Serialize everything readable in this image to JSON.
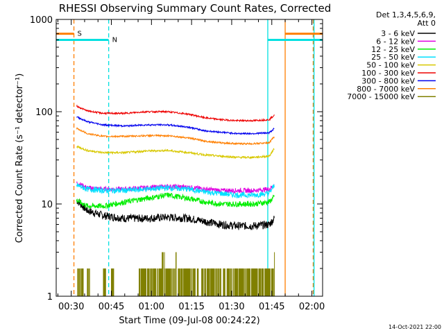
{
  "chart_data": {
    "type": "line",
    "title": "RHESSI Observing Summary Count Rates, Corrected",
    "xlabel": "Start Time (09-Jul-08 00:24:22)",
    "ylabel": "Corrected Count Rate (s⁻¹ detector⁻¹)",
    "y_scale": "log",
    "ylim": [
      1,
      1000
    ],
    "xlim_minutes": [
      24.37,
      124.0
    ],
    "x_ticks": [
      {
        "minute": 30,
        "label": "00:30"
      },
      {
        "minute": 45,
        "label": "00:45"
      },
      {
        "minute": 60,
        "label": "01:00"
      },
      {
        "minute": 75,
        "label": "01:15"
      },
      {
        "minute": 90,
        "label": "01:30"
      },
      {
        "minute": 105,
        "label": "01:45"
      },
      {
        "minute": 120,
        "label": "02:00"
      }
    ],
    "y_ticks": [
      {
        "value": 1,
        "label": "1"
      },
      {
        "value": 10,
        "label": "10"
      },
      {
        "value": 100,
        "label": "100"
      },
      {
        "value": 1000,
        "label": "1000"
      }
    ],
    "legend_header": [
      "Det 1,3,4,5,6,9,",
      "Att 0"
    ],
    "legend_position": "right",
    "series": [
      {
        "name": "3 - 6 keV",
        "color": "#000000",
        "x": [
          32,
          36,
          42,
          50,
          58,
          66,
          74,
          80,
          86,
          92,
          98,
          104,
          106
        ],
        "y": [
          11,
          8.5,
          7.5,
          7.0,
          7.0,
          7.2,
          7.0,
          6.5,
          6.0,
          5.8,
          5.8,
          6.0,
          7.0
        ]
      },
      {
        "name": "6 - 12 keV",
        "color": "#e000e0",
        "x": [
          32,
          36,
          42,
          50,
          58,
          66,
          74,
          80,
          86,
          92,
          98,
          104,
          106
        ],
        "y": [
          17,
          15,
          14.5,
          14.5,
          15,
          15.5,
          15.2,
          14.5,
          14,
          14,
          14,
          14.5,
          16
        ]
      },
      {
        "name": "12 - 25 keV",
        "color": "#00ee00",
        "x": [
          32,
          36,
          42,
          50,
          58,
          66,
          74,
          80,
          86,
          92,
          98,
          104,
          106
        ],
        "y": [
          11,
          9.5,
          9.5,
          10.5,
          11.5,
          12.5,
          11.5,
          10.5,
          10,
          10,
          10,
          10.5,
          12
        ]
      },
      {
        "name": "25 - 50 keV",
        "color": "#00e0ff",
        "x": [
          32,
          36,
          42,
          50,
          58,
          66,
          74,
          80,
          86,
          92,
          98,
          104,
          106
        ],
        "y": [
          16,
          14.5,
          14,
          14,
          14.5,
          15,
          14.5,
          13.5,
          13,
          12.5,
          12.5,
          13,
          16
        ]
      },
      {
        "name": "50 - 100 keV",
        "color": "#d8c800",
        "x": [
          32,
          36,
          42,
          50,
          58,
          66,
          74,
          80,
          86,
          92,
          98,
          104,
          106
        ],
        "y": [
          42,
          38,
          36,
          36,
          37.5,
          38,
          36,
          34,
          33,
          32,
          32,
          33,
          40
        ]
      },
      {
        "name": "100 - 300 keV",
        "color": "#ee0000",
        "x": [
          32,
          36,
          42,
          50,
          58,
          66,
          74,
          80,
          86,
          92,
          98,
          104,
          106
        ],
        "y": [
          115,
          102,
          96,
          96,
          100,
          100,
          94,
          86,
          82,
          80,
          80,
          82,
          92
        ]
      },
      {
        "name": "300 - 800 keV",
        "color": "#0000ee",
        "x": [
          32,
          36,
          42,
          50,
          58,
          66,
          74,
          80,
          86,
          92,
          98,
          104,
          106
        ],
        "y": [
          88,
          78,
          72,
          70,
          72,
          72,
          68,
          62,
          60,
          58,
          58,
          59,
          66
        ]
      },
      {
        "name": "800 - 7000 keV",
        "color": "#ff7f00",
        "x": [
          32,
          36,
          42,
          50,
          58,
          66,
          74,
          80,
          86,
          92,
          98,
          104,
          106
        ],
        "y": [
          66,
          58,
          54,
          54,
          55,
          55,
          52,
          48,
          46,
          45,
          45,
          46,
          54
        ]
      },
      {
        "name": "7000 - 15000 keV",
        "color": "#808000",
        "x": [
          32,
          33,
          34,
          35,
          36,
          37,
          38,
          39,
          40,
          41,
          42,
          43,
          44,
          45,
          46,
          47,
          48,
          49,
          50,
          51,
          52,
          53,
          54,
          55,
          56,
          57,
          58,
          59,
          60,
          61,
          62,
          63,
          64,
          65,
          66,
          67,
          68,
          69,
          70,
          71,
          72,
          73,
          74,
          75,
          76,
          77,
          78,
          79,
          80,
          81,
          82,
          83,
          84,
          85,
          86,
          87,
          88,
          89,
          90,
          91,
          92,
          93,
          94,
          95,
          96,
          97,
          98,
          99,
          100,
          101,
          102,
          103,
          104,
          105,
          106
        ],
        "y": [
          2,
          2,
          2,
          1,
          2,
          1,
          1,
          1,
          1,
          1,
          2,
          1,
          1,
          2,
          1,
          1,
          1,
          1,
          1,
          1,
          1,
          1,
          1,
          2,
          2,
          2,
          2,
          2,
          2,
          2,
          2,
          2,
          3,
          2,
          2,
          2,
          2,
          3,
          2,
          2,
          2,
          2,
          2,
          2,
          2,
          2,
          2,
          2,
          2,
          2,
          2,
          2,
          2,
          2,
          2,
          2,
          2,
          2,
          2,
          2,
          2,
          2,
          2,
          2,
          2,
          2,
          2,
          2,
          2,
          2,
          2,
          2,
          2,
          2,
          3
        ]
      }
    ],
    "markers": [
      {
        "label": "S",
        "color": "#ff7f00",
        "start_minute": 24.37,
        "end_minute": 31.0,
        "level": 700
      },
      {
        "label": "N",
        "color": "#00e0e0",
        "start_minute": 24.37,
        "end_minute": 44.0,
        "level": 600
      },
      {
        "label": "",
        "color": "#ff7f00",
        "start_minute": 110.0,
        "end_minute": 124.0,
        "level": 700
      },
      {
        "label": "",
        "color": "#00e0e0",
        "start_minute": 103.5,
        "end_minute": 124.0,
        "level": 600
      }
    ],
    "vertical_lines": [
      {
        "minute": 31.0,
        "color": "#ff7f00",
        "dash": true
      },
      {
        "minute": 44.0,
        "color": "#00e0e0",
        "dash": true
      },
      {
        "minute": 103.5,
        "color": "#00e0e0",
        "dash": false
      },
      {
        "minute": 110.0,
        "color": "#ff7f00",
        "dash": false
      },
      {
        "minute": 120.5,
        "color": "#ff7f00",
        "dash": true
      },
      {
        "minute": 120.8,
        "color": "#00e0e0",
        "dash": false
      }
    ],
    "footer": "14-Oct-2021 22:00",
    "grid": false
  }
}
